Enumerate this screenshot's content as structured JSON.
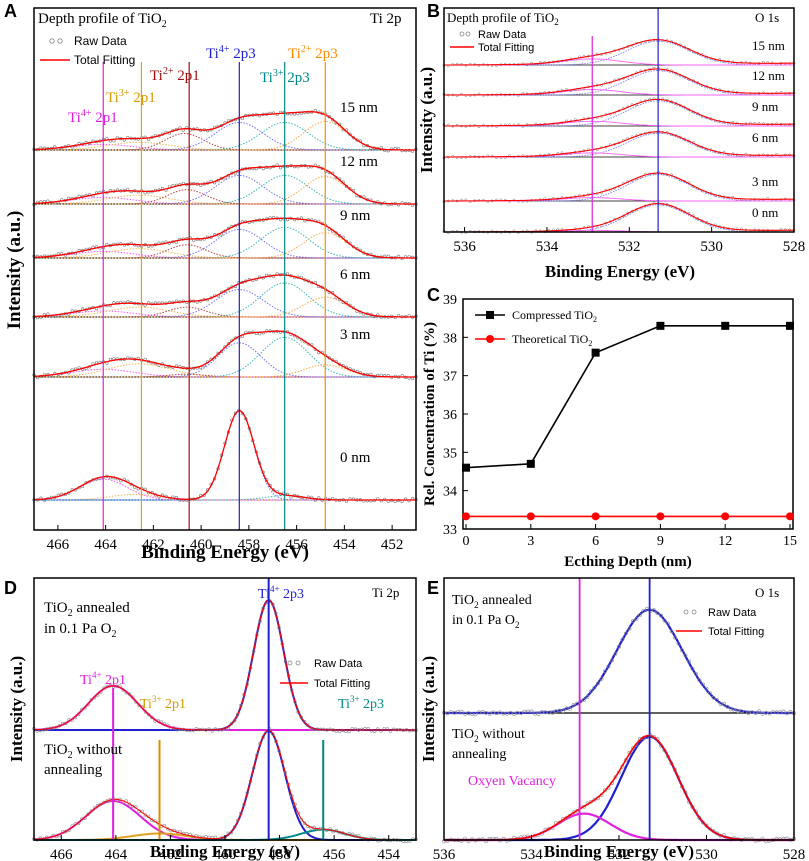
{
  "panels": {
    "A": {
      "letter": "A",
      "title_main": "Depth profile of TiO",
      "title_sub": "2",
      "region": "Ti 2p",
      "legend": {
        "raw": "Raw  Data",
        "fit": "Total Fitting"
      },
      "xlabel": "Binding Energy (eV)",
      "ylabel": "Intensity (a.u.)",
      "xlim": [
        467,
        451
      ],
      "xticks": [
        466,
        464,
        462,
        460,
        458,
        456,
        454,
        452
      ],
      "depths": [
        "15 nm",
        "12 nm",
        "9 nm",
        "6 nm",
        "3 nm",
        "0 nm"
      ],
      "guide_lines": [
        {
          "name": "ti4-2p1",
          "energy": 464.1,
          "color": "#e020e0"
        },
        {
          "name": "ti3-2p1",
          "energy": 462.5,
          "color": "#e0a020"
        },
        {
          "name": "ti2-2p1",
          "energy": 460.5,
          "color": "#a01010"
        },
        {
          "name": "ti4-2p3",
          "energy": 458.4,
          "color": "#2020d0"
        },
        {
          "name": "ti3-2p3",
          "energy": 456.5,
          "color": "#008888"
        },
        {
          "name": "ti2-2p3",
          "energy": 454.8,
          "color": "#ff8c00"
        }
      ],
      "labels": [
        {
          "name": "ti4-2p1-label",
          "ion": "Ti",
          "charge": "4+",
          "orbital": " 2p1",
          "color": "#e020e0"
        },
        {
          "name": "ti3-2p1-label",
          "ion": "Ti",
          "charge": "3+",
          "orbital": " 2p1",
          "color": "#d49a00"
        },
        {
          "name": "ti2-2p1-label",
          "ion": "Ti",
          "charge": "2+",
          "orbital": " 2p1",
          "color": "#a01010"
        },
        {
          "name": "ti4-2p3-label",
          "ion": "Ti",
          "charge": "4+",
          "orbital": " 2p3",
          "color": "#2020d0"
        },
        {
          "name": "ti3-2p3-label",
          "ion": "Ti",
          "charge": "3+",
          "orbital": " 2p3",
          "color": "#008888"
        },
        {
          "name": "ti2-2p3-label",
          "ion": "Ti",
          "charge": "2+",
          "orbital": " 2p3",
          "color": "#ff8c00"
        }
      ],
      "spectra": [
        {
          "depth": "15 nm",
          "peaks": [
            [
              464.1,
              0.1,
              1.3,
              "#ff40ff"
            ],
            [
              462.6,
              0.14,
              1.3,
              "#f0b040"
            ],
            [
              460.7,
              0.3,
              0.8,
              "#b03030"
            ],
            [
              458.4,
              0.5,
              1.0,
              "#6060ff"
            ],
            [
              456.5,
              0.5,
              1.0,
              "#20b0b0"
            ],
            [
              454.8,
              0.52,
              0.9,
              "#ff9a30"
            ]
          ]
        },
        {
          "depth": "12 nm",
          "peaks": [
            [
              464.1,
              0.12,
              1.3,
              "#ff40ff"
            ],
            [
              462.6,
              0.16,
              1.3,
              "#f0b040"
            ],
            [
              460.6,
              0.26,
              0.8,
              "#b03030"
            ],
            [
              458.4,
              0.52,
              1.0,
              "#6060ff"
            ],
            [
              456.5,
              0.52,
              1.0,
              "#20b0b0"
            ],
            [
              454.8,
              0.5,
              0.9,
              "#ff9a30"
            ]
          ]
        },
        {
          "depth": "9 nm",
          "peaks": [
            [
              464.1,
              0.12,
              1.3,
              "#ff40ff"
            ],
            [
              462.6,
              0.17,
              1.3,
              "#f0b040"
            ],
            [
              460.6,
              0.24,
              0.8,
              "#b03030"
            ],
            [
              458.4,
              0.52,
              1.0,
              "#6060ff"
            ],
            [
              456.5,
              0.56,
              1.0,
              "#20b0b0"
            ],
            [
              454.8,
              0.46,
              0.9,
              "#ff9a30"
            ]
          ]
        },
        {
          "depth": "6 nm",
          "peaks": [
            [
              464.1,
              0.11,
              1.3,
              "#ff40ff"
            ],
            [
              462.6,
              0.18,
              1.3,
              "#f0b040"
            ],
            [
              460.6,
              0.18,
              0.8,
              "#b03030"
            ],
            [
              458.4,
              0.5,
              1.0,
              "#6060ff"
            ],
            [
              456.5,
              0.62,
              1.0,
              "#20b0b0"
            ],
            [
              454.8,
              0.36,
              0.9,
              "#ff9a30"
            ]
          ]
        },
        {
          "depth": "3 nm",
          "peaks": [
            [
              464.1,
              0.14,
              1.3,
              "#ff40ff"
            ],
            [
              462.6,
              0.24,
              1.3,
              "#f0b040"
            ],
            [
              460.6,
              0.05,
              0.8,
              "#b03030"
            ],
            [
              458.4,
              0.62,
              0.9,
              "#6060ff"
            ],
            [
              456.5,
              0.72,
              1.0,
              "#20b0b0"
            ],
            [
              454.8,
              0.22,
              0.9,
              "#ff9a30"
            ]
          ]
        },
        {
          "depth": "0 nm",
          "peaks": [
            [
              464.1,
              0.38,
              1.0,
              "#ff40ff"
            ],
            [
              462.8,
              0.1,
              1.0,
              "#f0b040"
            ],
            [
              458.4,
              1.62,
              0.62,
              "#6060ff"
            ],
            [
              456.5,
              0.08,
              0.8,
              "#20b0b0"
            ]
          ]
        }
      ]
    },
    "B": {
      "letter": "B",
      "title_main": "Depth profile of TiO",
      "title_sub": "2",
      "region": "O 1s",
      "legend": {
        "raw": "Raw  Data",
        "fit": "Total Fitting"
      },
      "xlabel": "Binding Energy (eV)",
      "ylabel": "Intensity (a.u.)",
      "xlim": [
        536.5,
        528
      ],
      "xticks": [
        536,
        534,
        532,
        530,
        528
      ],
      "depths": [
        "15 nm",
        "12 nm",
        "9 nm",
        "6 nm",
        "3 nm",
        "0 nm"
      ],
      "guide_lines": [
        {
          "name": "oxygen-vacancy-line",
          "energy": 532.9,
          "color": "#e020e0"
        },
        {
          "name": "lattice-oxygen-line",
          "energy": 531.3,
          "color": "#2020d0"
        }
      ]
    },
    "C": {
      "letter": "C",
      "xlabel": "Ecthing Depth (nm)",
      "ylabel": "Rel. Concentration of Ti (%)",
      "legend": [
        {
          "label": "Compressed TiO",
          "sub": "2"
        },
        {
          "label": "Theoretical TiO",
          "sub": "2"
        }
      ]
    },
    "D": {
      "letter": "D",
      "region": "Ti 2p",
      "annealed_line1_pre": "TiO",
      "annealed_line1_sub": "2",
      "annealed_line1_post": " annealed",
      "annealed_line2_pre": "in 0.1 Pa O",
      "annealed_line2_sub": "2",
      "without_line1_pre": "TiO",
      "without_line1_sub": "2",
      "without_line1_post": " without",
      "without_line2": "annealing",
      "legend": {
        "raw": "Raw  Data",
        "fit": "Total Fitting"
      },
      "xlabel": "Binding Energy (eV)",
      "ylabel": "Intensity (a.u.)",
      "xlim": [
        467,
        453
      ],
      "xticks": [
        466,
        464,
        462,
        460,
        458,
        456,
        454
      ],
      "labels": [
        {
          "name": "d-ti4-2p1-label",
          "ion": "Ti",
          "charge": "4+",
          "orbital": " 2p1",
          "color": "#e020e0"
        },
        {
          "name": "d-ti3-2p1-label",
          "ion": "Ti",
          "charge": "3+",
          "orbital": " 2p1",
          "color": "#d49a00"
        },
        {
          "name": "d-ti4-2p3-label",
          "ion": "Ti",
          "charge": "4+",
          "orbital": " 2p3",
          "color": "#2020d0"
        },
        {
          "name": "d-ti3-2p3-label",
          "ion": "Ti",
          "charge": "3+",
          "orbital": " 2p3",
          "color": "#008888"
        }
      ]
    },
    "E": {
      "letter": "E",
      "region": "O 1s",
      "annealed_line1_pre": "TiO",
      "annealed_line1_sub": "2",
      "annealed_line1_post": " annealed",
      "annealed_line2_pre": "in 0.1 Pa O",
      "annealed_line2_sub": "2",
      "without_line1_pre": "TiO",
      "without_line1_sub": "2",
      "without_line1_post": " without",
      "without_line2": "annealing",
      "vacancy_label": "Oxyen Vacancy",
      "legend": {
        "raw": "Raw  Data",
        "fit": "Total Fitting"
      },
      "xlabel": "Binding Energy (eV)",
      "ylabel": "Intensity (a.u.)",
      "xlim": [
        536,
        528
      ],
      "xticks": [
        536,
        534,
        532,
        530,
        528
      ]
    }
  },
  "chart_data": [
    {
      "panel": "A",
      "type": "line",
      "title": "Depth profile of TiO2 — Ti 2p",
      "xlabel": "Binding Energy (eV)",
      "ylabel": "Intensity (a.u.)",
      "xlim": [
        467,
        451
      ],
      "x_ticks": [
        466,
        464,
        462,
        460,
        458,
        456,
        454,
        452
      ],
      "series": [
        {
          "name": "15 nm",
          "peak_positions_eV": [
            464.1,
            462.5,
            460.5,
            458.4,
            456.5,
            454.8
          ]
        },
        {
          "name": "12 nm",
          "peak_positions_eV": [
            464.1,
            462.5,
            460.5,
            458.4,
            456.5,
            454.8
          ]
        },
        {
          "name": "9 nm",
          "peak_positions_eV": [
            464.1,
            462.5,
            460.5,
            458.4,
            456.5,
            454.8
          ]
        },
        {
          "name": "6 nm",
          "peak_positions_eV": [
            464.1,
            462.5,
            460.5,
            458.4,
            456.5,
            454.8
          ]
        },
        {
          "name": "3 nm",
          "peak_positions_eV": [
            464.1,
            462.5,
            458.4,
            456.5
          ]
        },
        {
          "name": "0 nm",
          "peak_positions_eV": [
            464.1,
            458.4
          ]
        }
      ]
    },
    {
      "panel": "B",
      "type": "line",
      "title": "Depth profile of TiO2 — O 1s",
      "xlabel": "Binding Energy (eV)",
      "ylabel": "Intensity (a.u.)",
      "xlim": [
        536.5,
        528
      ],
      "x_ticks": [
        536,
        534,
        532,
        530,
        528
      ],
      "series": [
        {
          "name": "15 nm",
          "peak_position_eV": 531.3,
          "amplitude": 0.7,
          "vacancy_amplitude": 0.18
        },
        {
          "name": "12 nm",
          "peak_position_eV": 531.3,
          "amplitude": 0.72,
          "vacancy_amplitude": 0.16
        },
        {
          "name": "9 nm",
          "peak_position_eV": 531.3,
          "amplitude": 0.74,
          "vacancy_amplitude": 0.14
        },
        {
          "name": "6 nm",
          "peak_position_eV": 531.3,
          "amplitude": 0.7,
          "vacancy_amplitude": 0.12
        },
        {
          "name": "3 nm",
          "peak_position_eV": 531.3,
          "amplitude": 0.78,
          "vacancy_amplitude": 0.1
        },
        {
          "name": "0 nm",
          "peak_position_eV": 531.3,
          "amplitude": 0.8,
          "vacancy_amplitude": 0.05
        }
      ]
    },
    {
      "panel": "C",
      "type": "line",
      "xlabel": "Ecthing Depth (nm)",
      "ylabel": "Rel. Concentration of Ti (%)",
      "x": [
        0,
        3,
        6,
        9,
        12,
        15
      ],
      "xlim": [
        0,
        15
      ],
      "ylim": [
        33,
        39
      ],
      "x_ticks": [
        0,
        3,
        6,
        9,
        12,
        15
      ],
      "y_ticks": [
        33,
        34,
        35,
        36,
        37,
        38,
        39
      ],
      "series": [
        {
          "name": "Compressed TiO2",
          "color": "#000000",
          "marker": "square",
          "values": [
            34.6,
            34.7,
            37.6,
            38.3,
            38.3,
            38.3
          ]
        },
        {
          "name": "Theoretical TiO2",
          "color": "#ff0000",
          "marker": "circle",
          "values": [
            33.33,
            33.33,
            33.33,
            33.33,
            33.33,
            33.33
          ]
        }
      ]
    },
    {
      "panel": "D",
      "type": "line",
      "xlabel": "Binding Energy (eV)",
      "ylabel": "Intensity (a.u.)",
      "xlim": [
        467,
        453
      ],
      "x_ticks": [
        466,
        464,
        462,
        460,
        458,
        456,
        454
      ],
      "guide_lines_eV": [
        {
          "name": "ti4-2p1",
          "energy": 464.1,
          "color": "#e020e0"
        },
        {
          "name": "ti3-2p1",
          "energy": 462.4,
          "color": "#e08a00"
        },
        {
          "name": "ti4-2p3",
          "energy": 458.4,
          "color": "#2020d0"
        },
        {
          "name": "ti3-2p3",
          "energy": 456.4,
          "color": "#008888"
        }
      ],
      "series": [
        {
          "name": "TiO2 annealed in 0.1 Pa O2",
          "offset": 0.97,
          "peaks": [
            [
              464.1,
              0.34,
              0.9,
              "#e020e0"
            ],
            [
              458.4,
              1.0,
              0.55,
              "#2020d0"
            ]
          ]
        },
        {
          "name": "TiO2 without annealing",
          "offset": 0.0,
          "peaks": [
            [
              464.1,
              0.3,
              1.0,
              "#e020e0"
            ],
            [
              462.4,
              0.05,
              1.0,
              "#e0a020"
            ],
            [
              458.4,
              0.84,
              0.6,
              "#2020d0"
            ],
            [
              456.4,
              0.08,
              0.8,
              "#008888"
            ]
          ]
        }
      ]
    },
    {
      "panel": "E",
      "type": "line",
      "xlabel": "Binding Energy (eV)",
      "ylabel": "Intensity (a.u.)",
      "xlim": [
        536,
        528
      ],
      "x_ticks": [
        536,
        534,
        532,
        530,
        528
      ],
      "guide_lines_eV": [
        {
          "name": "oxygen-vacancy-line",
          "energy": 532.9,
          "color": "#e020e0"
        },
        {
          "name": "lattice-oxygen-line",
          "energy": 531.3,
          "color": "#2020d0"
        }
      ],
      "series": [
        {
          "name": "TiO2 annealed in 0.1 Pa O2",
          "offset": 1.0,
          "peaks": [
            [
              531.3,
              0.86,
              0.75,
              "#2020d0"
            ]
          ]
        },
        {
          "name": "TiO2 without annealing",
          "offset": 0.0,
          "peaks": [
            [
              531.3,
              0.86,
              0.65,
              "#2020d0"
            ],
            [
              532.8,
              0.22,
              0.6,
              "#e020e0"
            ]
          ]
        }
      ]
    }
  ]
}
